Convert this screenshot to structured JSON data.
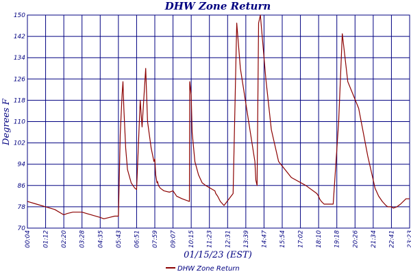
{
  "chart_data": {
    "type": "line",
    "title": "DHW Zone Return",
    "xlabel": "01/15/23 (EST)",
    "ylabel": "Degrees F",
    "ylim": [
      70,
      150
    ],
    "yticks": [
      70,
      78,
      86,
      94,
      102,
      110,
      118,
      126,
      134,
      142,
      150
    ],
    "x_tick_labels": [
      "00:04",
      "01:12",
      "02:20",
      "03:28",
      "04:35",
      "05:43",
      "06:51",
      "07:59",
      "09:07",
      "10:15",
      "11:23",
      "12:31",
      "13:39",
      "14:47",
      "15:54",
      "17:02",
      "18:10",
      "19:18",
      "20:26",
      "21:34",
      "22:41",
      "23:23"
    ],
    "grid": true,
    "legend_position": "bottom-center",
    "colors": {
      "series": "#8b0000",
      "grid": "#000080",
      "text": "#000080"
    },
    "series": [
      {
        "name": "DHW Zone Return",
        "points_x_tick_index": [
          0,
          0.5,
          1,
          1.5,
          2,
          2.2,
          2.5,
          2.8,
          3,
          3.5,
          4,
          4.2,
          4.5,
          4.8,
          5,
          5.1,
          5.2,
          5.25,
          5.3,
          5.4,
          5.5,
          5.7,
          5.9,
          6,
          6.2,
          6.3,
          6.5,
          6.6,
          6.8,
          6.95,
          7,
          7.05,
          7.12,
          7.15,
          7.2,
          7.3,
          7.5,
          7.8,
          8,
          8.2,
          8.5,
          8.9,
          8.92,
          9,
          9.05,
          9.2,
          9.4,
          9.6,
          9.8,
          10.3,
          10.35,
          10.45,
          10.6,
          10.8,
          11.3,
          11.5,
          11.7,
          12.5,
          12.55,
          12.62,
          12.7,
          12.8,
          13.1,
          13.4,
          13.8,
          14.5,
          15.3,
          15.9,
          16.0,
          16.05,
          16.15,
          16.3,
          16.45,
          16.6,
          16.8,
          17.1,
          17.3,
          17.6,
          18.2,
          18.7,
          19.0,
          19.1,
          19.3,
          19.5,
          19.7,
          19.8,
          20.0,
          20.1,
          20.3,
          20.5,
          20.8,
          21.0
        ],
        "values": [
          80,
          79,
          78,
          77,
          75,
          75.5,
          76,
          76,
          76,
          75,
          74,
          73.5,
          74,
          74.5,
          74.5,
          105,
          120,
          125,
          115,
          100,
          92,
          87,
          85,
          84.5,
          118,
          108,
          130,
          110,
          100,
          95,
          96,
          90,
          87,
          87.5,
          86,
          85,
          84,
          83.5,
          84,
          82,
          81,
          80,
          125,
          120,
          106,
          95,
          90,
          87,
          86,
          84,
          83,
          82,
          80,
          78.5,
          83,
          147,
          130,
          95,
          88,
          86,
          147,
          150,
          126,
          107,
          95,
          89,
          86,
          83,
          82,
          81,
          80,
          79,
          79,
          79,
          79,
          110,
          143,
          125,
          115,
          97,
          88,
          85,
          82,
          80,
          78.5,
          78,
          78,
          77.5,
          78,
          79,
          81,
          81
        ]
      }
    ]
  }
}
